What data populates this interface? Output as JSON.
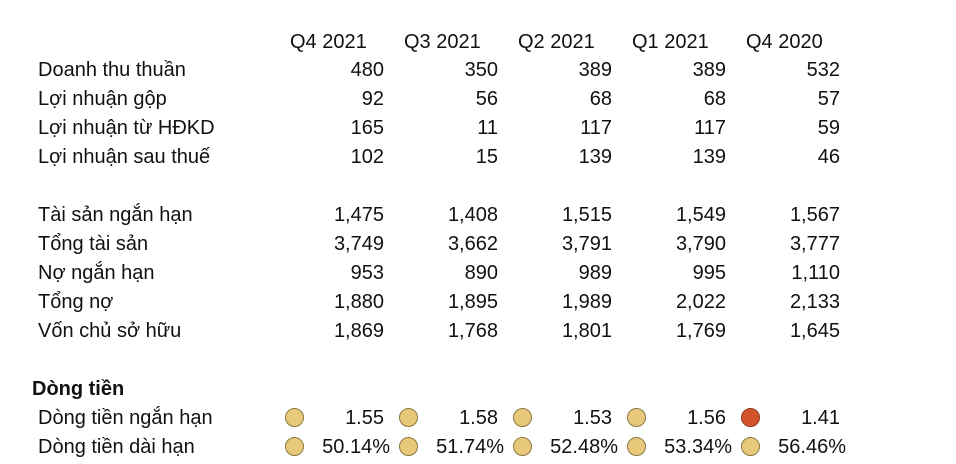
{
  "columns": [
    "Q4 2021",
    "Q3 2021",
    "Q2 2021",
    "Q1 2021",
    "Q4 2020"
  ],
  "income": [
    {
      "label": "Doanh thu thuần",
      "values": [
        "480",
        "350",
        "389",
        "389",
        "532"
      ]
    },
    {
      "label": "Lợi nhuận gộp",
      "values": [
        "92",
        "56",
        "68",
        "68",
        "57"
      ]
    },
    {
      "label": "Lợi nhuận từ HĐKD",
      "values": [
        "165",
        "11",
        "117",
        "117",
        "59"
      ]
    },
    {
      "label": "Lợi nhuận sau thuế",
      "values": [
        "102",
        "15",
        "139",
        "139",
        "46"
      ]
    }
  ],
  "balance": [
    {
      "label": "Tài sản ngắn hạn",
      "values": [
        "1,475",
        "1,408",
        "1,515",
        "1,549",
        "1,567"
      ]
    },
    {
      "label": "Tổng tài sản",
      "values": [
        "3,749",
        "3,662",
        "3,791",
        "3,790",
        "3,777"
      ]
    },
    {
      "label": "Nợ ngắn hạn",
      "values": [
        "953",
        "890",
        "989",
        "995",
        "1,110"
      ]
    },
    {
      "label": "Tổng nợ",
      "values": [
        "1,880",
        "1,895",
        "1,989",
        "2,022",
        "2,133"
      ]
    },
    {
      "label": "Vốn chủ sở hữu",
      "values": [
        "1,869",
        "1,768",
        "1,801",
        "1,769",
        "1,645"
      ]
    }
  ],
  "cashflow": {
    "title": "Dòng tiền",
    "rows": [
      {
        "label": "Dòng tiền ngắn hạn",
        "values": [
          "1.55",
          "1.58",
          "1.53",
          "1.56",
          "1.41"
        ],
        "indicators": [
          "neutral",
          "neutral",
          "neutral",
          "neutral",
          "bad"
        ]
      },
      {
        "label": "Dòng tiền dài hạn",
        "values": [
          "50.14%",
          "51.74%",
          "52.48%",
          "53.34%",
          "56.46%"
        ],
        "indicators": [
          "neutral",
          "neutral",
          "neutral",
          "neutral",
          "neutral"
        ]
      }
    ]
  },
  "colors": {
    "indicator_neutral": "#e8c97c",
    "indicator_bad": "#d4532d"
  }
}
